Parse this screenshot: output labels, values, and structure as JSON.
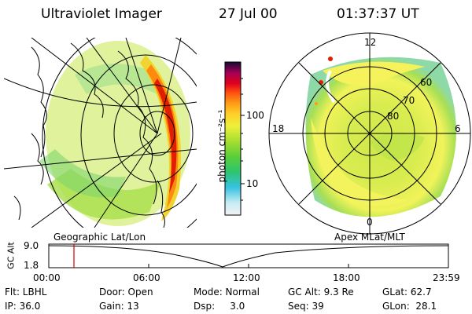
{
  "header": {
    "instrument": "Ultraviolet Imager",
    "date": "27 Jul 00",
    "time": "01:37:37 UT"
  },
  "left_panel": {
    "label": "Geographic Lat/Lon"
  },
  "right_panel": {
    "label": "Apex MLat/MLT",
    "mlt_labels": [
      "12",
      "18",
      "6",
      "0"
    ],
    "mlat_labels": [
      "60",
      "70",
      "80"
    ]
  },
  "colorbar": {
    "unit_label": "photon cm⁻²s⁻¹",
    "ticks": [
      "100",
      "10"
    ]
  },
  "altitude_strip": {
    "axis_label": "GC Alt",
    "ymax": "9.0",
    "ymin": "1.8",
    "time_ticks": [
      "00:00",
      "06:00",
      "12:00",
      "18:00",
      "23:59"
    ],
    "marker_time": "01:37:37"
  },
  "footer": {
    "row1": {
      "filter": "Flt: LBHL",
      "door": "Door: Open",
      "mode": "Mode: Normal",
      "gc_alt": "GC Alt: 9.3 Re",
      "glat": "GLat: 62.7"
    },
    "row2": {
      "ip": "IP: 36.0",
      "gain": "Gain: 13",
      "dsp": "Dsp:     3.0",
      "seq": "Seq: 39",
      "glon": "GLon:  28.1"
    }
  },
  "colors": {
    "marker": "#d00000",
    "auroral_oval": "#e01f00"
  }
}
